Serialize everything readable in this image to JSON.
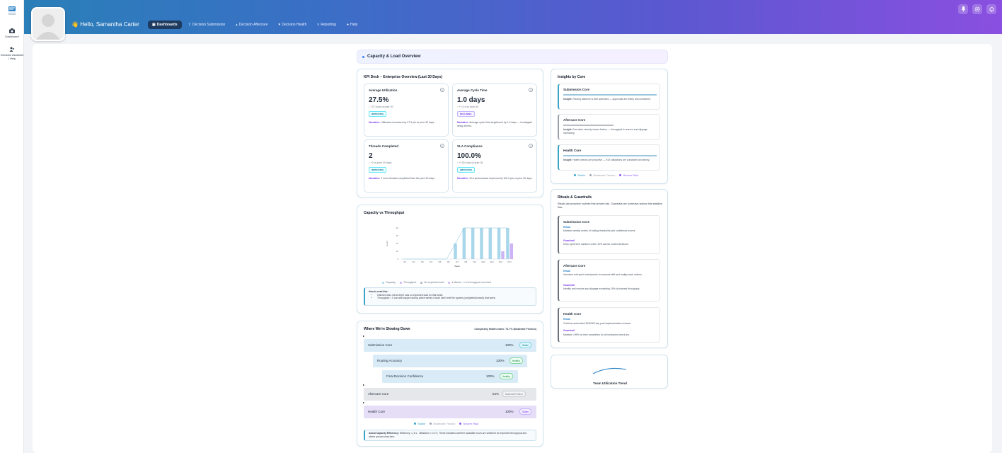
{
  "rail": {
    "items": [
      {
        "label": "Dashboard"
      },
      {
        "label": "Decision Assistant / Help"
      }
    ]
  },
  "header": {
    "greeting": "Hello, Samantha Carter",
    "tabs": [
      {
        "label": "Dashboards"
      },
      {
        "label": "Decision Submission"
      },
      {
        "label": "Decision Aftercare"
      },
      {
        "label": "Decision Health"
      },
      {
        "label": "Reporting"
      },
      {
        "label": "Help"
      }
    ]
  },
  "section_title": "Capacity & Load Overview",
  "kpi_deck": {
    "title": "KPI Deck – Enterprise Overview (Last 30 Days)",
    "cards": [
      {
        "title": "Average Utilization",
        "value": "27.5%",
        "delta": "↑ +27.5 pts vs prior 30",
        "badge": "IMPROVING",
        "narrative_label": "Narrative:",
        "narrative": "Utilization increased by 27.5 pts vs prior 30 days."
      },
      {
        "title": "Average Cycle Time",
        "value": "1.0 days",
        "delta": "↑ +1.0 d vs prior 30",
        "badge": "DECLINING",
        "narrative_label": "Narrative:",
        "narrative": "Average cycle time lengthened by 1.0 days — investigate delay drivers."
      },
      {
        "title": "Threads Completed",
        "value": "2",
        "delta": "↑ +2 vs prior 30 days",
        "badge": "IMPROVING",
        "narrative_label": "Narrative:",
        "narrative": "2 more threads completed than the prior 30 days."
      },
      {
        "title": "SLA Compliance",
        "value": "100.0%",
        "delta": "↑ +100.0 pts vs prior 30",
        "badge": "IMPROVING",
        "narrative_label": "Narrative:",
        "narrative": "SLA performance improved by 100.0 pts vs prior 30 days."
      }
    ]
  },
  "capacity_chart": {
    "title": "Capacity vs Throughput",
    "legend": [
      "Capacity",
      "Throughput",
      "No expected load",
      "♦ Marker = no throughput recorded"
    ],
    "howto_title": "How to read this:",
    "howto_items": [
      "Hatched bars mean there was no expected load for that week.",
      "Throughput = 0 can still happen during active weeks if work didn't exit the system (completed/closed) that week."
    ]
  },
  "chart_data": {
    "type": "bar",
    "title": "Capacity vs Throughput",
    "xlabel": "Week",
    "ylabel": "Hours",
    "ylim": [
      0,
      40
    ],
    "yticks": [
      0,
      10,
      20,
      30,
      40
    ],
    "categories": [
      "W1",
      "W2",
      "W3",
      "W4",
      "W5",
      "W6",
      "W7",
      "W8",
      "W9",
      "W10",
      "W11",
      "W12",
      "W13"
    ],
    "series": [
      {
        "name": "Capacity",
        "values": [
          0,
          0,
          0,
          0,
          0,
          0,
          20,
          40,
          40,
          40,
          40,
          40,
          40
        ]
      },
      {
        "name": "Throughput",
        "values": [
          0,
          0,
          0,
          0,
          0,
          0,
          0,
          0,
          0,
          0,
          0,
          10,
          20
        ]
      }
    ]
  },
  "slowing": {
    "title": "Where We're Slowing Down",
    "health_index": "Complexity Health Index: 73.7% (Moderate Friction)",
    "rows": [
      {
        "name": "Submission Core",
        "pct": "100%",
        "status": "Stable"
      },
      {
        "name": "Routing Accuracy",
        "pct": "100%",
        "status": "Healthy"
      },
      {
        "name": "Final Decision Confidence",
        "pct": "100%",
        "status": "Healthy"
      },
      {
        "name": "Aftercare Core",
        "pct": "54%",
        "status": "Moderate Friction"
      },
      {
        "name": "Health Core",
        "pct": "100%",
        "status": "Stable"
      }
    ],
    "legend": [
      "Stable",
      "Moderate Friction",
      "Severe Risk"
    ],
    "about_label": "About Capacity Efficiency:",
    "about_text": "Efficiency = (1/1 - Utilization × 0.2?). These indicates whether available hours are sufficient for expected throughput and where queues may form."
  },
  "insights": {
    "title": "Insights by Core",
    "cores": [
      {
        "name": "Submission Core",
        "insight_label": "Insight:",
        "insight": "Routing cadence is well optimized — approvals are timely and consistent.",
        "bar": 1.0
      },
      {
        "name": "Aftercare Core",
        "insight_label": "Insight:",
        "insight": "Execution velocity shows friction — throughput is uneven and slippage increasing.",
        "bar": 0.54
      },
      {
        "name": "Health Core",
        "insight_label": "Insight:",
        "insight": "Health checks are proactive — KOI validations are consistent and timely.",
        "bar": 1.0
      }
    ],
    "legend": [
      "Stable",
      "Moderate Friction",
      "Severe Risk"
    ]
  },
  "rituals": {
    "title": "Rituals & Guardrails",
    "intro": "Rituals are proactive routines that prevent risk. Guardrails are corrective actions that stabilize flow.",
    "cores": [
      {
        "name": "Submission Core",
        "ritual_label": "Ritual",
        "ritual": "Maintain weekly review of routing thresholds and confidence scores.",
        "guardrail_label": "Guardrail",
        "guardrail": "Keep cycle time variance under 10% across routed decisions."
      },
      {
        "name": "Aftercare Core",
        "ritual_label": "Ritual",
        "ritual": "Introduce mid-sprint checkpoints to measure drift and realign work actions.",
        "guardrail_label": "Guardrail",
        "guardrail": "Identify and resolve any slippage exceeding 15% of planned throughput."
      },
      {
        "name": "Health Core",
        "ritual_label": "Ritual",
        "ritual": "Continue automated 30/60/90 day post-implementation reviews.",
        "guardrail_label": "Guardrail",
        "guardrail": "Maintain >95% on-time completion for all scheduled check-ins."
      }
    ]
  },
  "trend": {
    "title": "Team Utilization Trend"
  },
  "colors": {
    "stable": "#38a3c6",
    "moderate": "#9ca3af",
    "severe": "#8b5cf6",
    "capacity": "#a8d6ea",
    "throughput": "#cdb4f5"
  }
}
